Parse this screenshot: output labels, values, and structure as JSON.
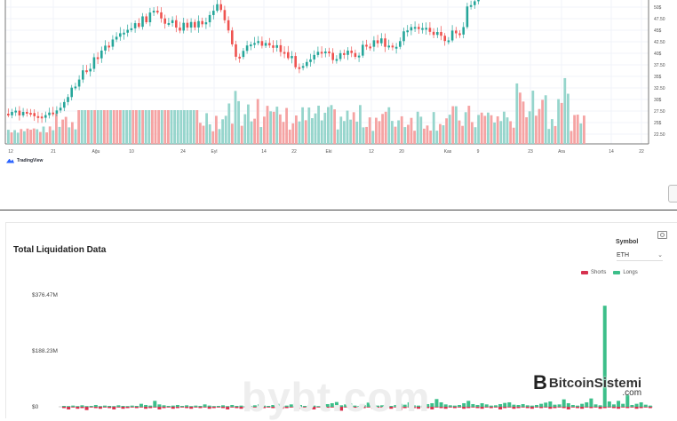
{
  "price_chart": {
    "x_ticks": [
      "12",
      "21",
      "Ağu",
      "10",
      "24",
      "Eyl",
      "14",
      "22",
      "Eki",
      "12",
      "20",
      "Kas",
      "9",
      "23",
      "Ara",
      "14",
      "22"
    ],
    "y_ticks": [
      "50$",
      "47.50",
      "45$",
      "42.50",
      "40$",
      "37.50",
      "35$",
      "32.50",
      "30$",
      "27.50",
      "25$",
      "22.50"
    ],
    "up_color": "#26a69a",
    "down_color": "#ef5350",
    "vol_up_color": "#96d5cc",
    "vol_down_color": "#f5a3a3"
  },
  "tradingview": {
    "label": "TradingView"
  },
  "liquidation": {
    "title": "Total Liquidation Data",
    "symbol_label": "Symbol",
    "symbol_value": "ETH",
    "dropdown_icon": "chevron-down-icon",
    "legend": [
      {
        "name": "Shorts",
        "color": "#d6324f"
      },
      {
        "name": "Longs",
        "color": "#3dbf8a"
      }
    ],
    "y_ticks": [
      "$376.47M",
      "$188.23M",
      "$0"
    ]
  },
  "chart_data": {
    "type": "bar",
    "title": "Total Liquidation Data",
    "ylim": [
      -7,
      376.47
    ],
    "series": [
      {
        "name": "Longs",
        "values": [
          3,
          2,
          4,
          1,
          5,
          2,
          3,
          6,
          2,
          4,
          3,
          2,
          5,
          3,
          2,
          4,
          3,
          10,
          6,
          4,
          20,
          8,
          5,
          3,
          4,
          6,
          3,
          5,
          2,
          4,
          3,
          8,
          4,
          2,
          3,
          5,
          2,
          6,
          3,
          4,
          2,
          3,
          5,
          8,
          4,
          3,
          6,
          10,
          5,
          4,
          8,
          12,
          6,
          3,
          5,
          4,
          2,
          6,
          9,
          12,
          16,
          5,
          8,
          12,
          4,
          3,
          6,
          14,
          6,
          4,
          5,
          8,
          3,
          6,
          10,
          7,
          15,
          5,
          4,
          4,
          9,
          12,
          26,
          15,
          8,
          5,
          4,
          6,
          12,
          20,
          9,
          6,
          12,
          8,
          4,
          5,
          9,
          13,
          15,
          7,
          6,
          9,
          5,
          4,
          6,
          10,
          14,
          18,
          7,
          8,
          25,
          12,
          6,
          4,
          10,
          15,
          28,
          8,
          5,
          340,
          18,
          8,
          20,
          10,
          40,
          6,
          10,
          15,
          7,
          4
        ]
      },
      {
        "name": "Shorts",
        "values": [
          -2,
          -4,
          -1,
          -3,
          -2,
          -5,
          -1,
          -2,
          -3,
          -1,
          -2,
          -4,
          -1,
          -3,
          -2,
          -1,
          -2,
          -1,
          -3,
          -2,
          -1,
          -4,
          -2,
          -1,
          -3,
          -2,
          -1,
          -2,
          -3,
          -1,
          -2,
          -1,
          -3,
          -2,
          -1,
          -2,
          -4,
          -1,
          -2,
          -3,
          -1,
          -2,
          -1,
          -3,
          -2,
          -1,
          -2,
          -1,
          -3,
          -2,
          -1,
          -2,
          -3,
          -1,
          -2,
          -4,
          -1,
          -3,
          -2,
          -1,
          -2,
          -6,
          -1,
          -2,
          -3,
          -1,
          -2,
          -1,
          -3,
          -2,
          -1,
          -2,
          -3,
          -1,
          -5,
          -2,
          -1,
          -2,
          -3,
          -1,
          -2,
          -4,
          -1,
          -2,
          -3,
          -1,
          -2,
          -1,
          -3,
          -2,
          -1,
          -2,
          -3,
          -1,
          -2,
          -1,
          -4,
          -2,
          -1,
          -3,
          -2,
          -1,
          -2,
          -3,
          -1,
          -2,
          -1,
          -3,
          -2,
          -1,
          -2,
          -4,
          -1,
          -2,
          -3,
          -1,
          -2,
          -1,
          -3,
          -2,
          -1,
          -2,
          -3,
          -1,
          -2,
          -1,
          -3,
          -2,
          -1,
          -2
        ]
      }
    ]
  },
  "watermark": "bybt.com",
  "brand": {
    "name": "BitcoinSistemi",
    "icon": "B",
    "suffix": ".com"
  }
}
